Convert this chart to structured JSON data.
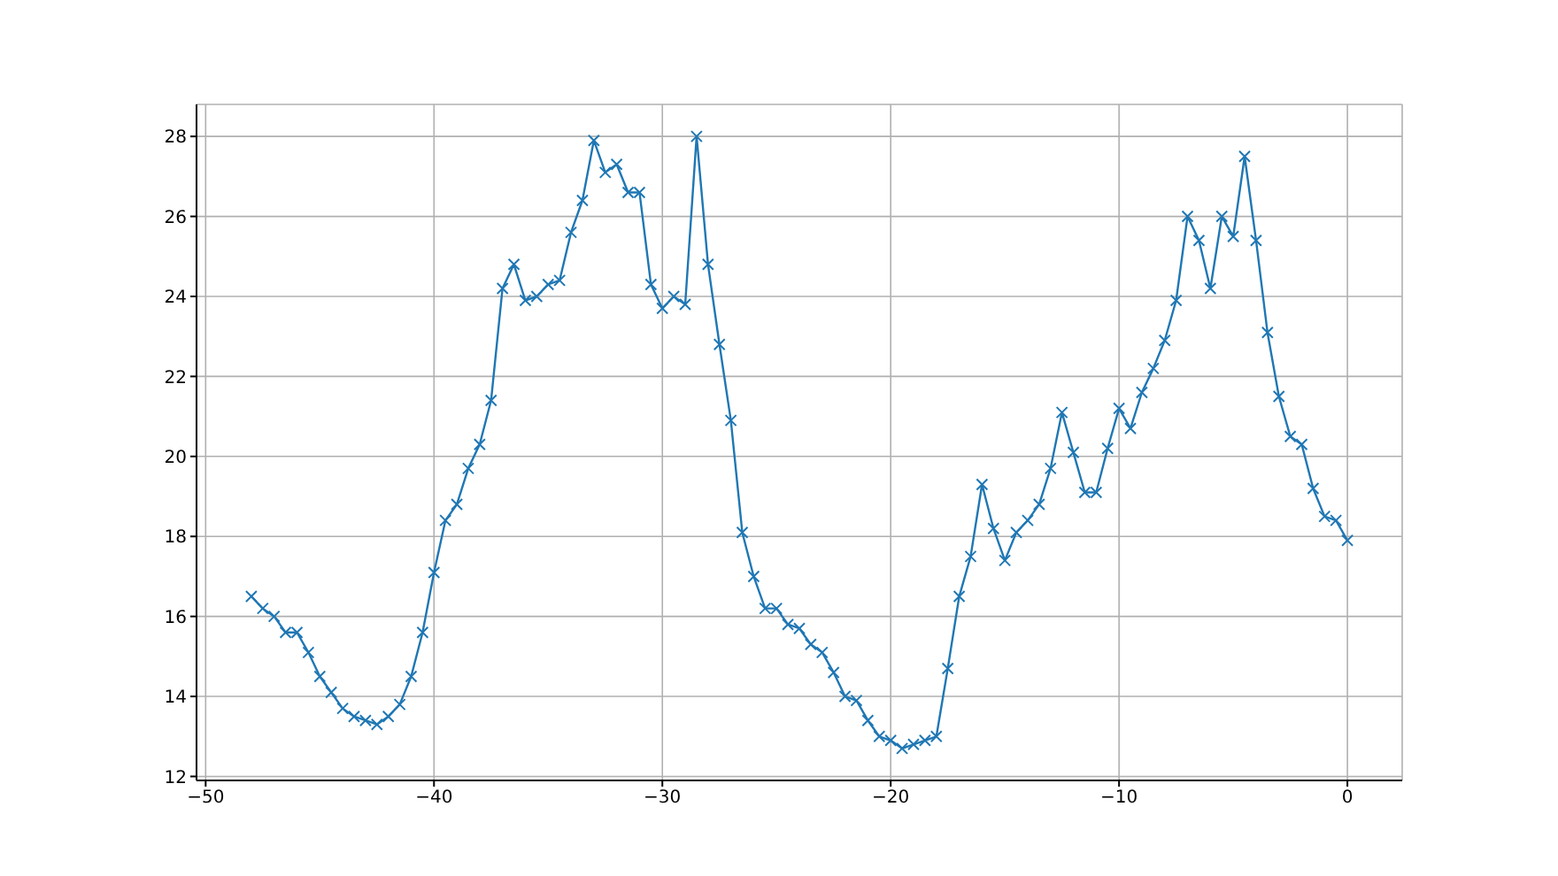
{
  "chart_data": {
    "type": "line",
    "x": [
      -48,
      -47.5,
      -47,
      -46.5,
      -46,
      -45.5,
      -45,
      -44.5,
      -44,
      -43.5,
      -43,
      -42.5,
      -42,
      -41.5,
      -41,
      -40.5,
      -40,
      -39.5,
      -39,
      -38.5,
      -38,
      -37.5,
      -37,
      -36.5,
      -36,
      -35.5,
      -35,
      -34.5,
      -34,
      -33.5,
      -33,
      -32.5,
      -32,
      -31.5,
      -31,
      -30.5,
      -30,
      -29.5,
      -29,
      -28.5,
      -28,
      -27.5,
      -27,
      -26.5,
      -26,
      -25.5,
      -25,
      -24.5,
      -24,
      -23.5,
      -23,
      -22.5,
      -22,
      -21.5,
      -21,
      -20.5,
      -20,
      -19.5,
      -19,
      -18.5,
      -18,
      -17.5,
      -17,
      -16.5,
      -16,
      -15.5,
      -15,
      -14.5,
      -14,
      -13.5,
      -13,
      -12.5,
      -12,
      -11.5,
      -11,
      -10.5,
      -10,
      -9.5,
      -9,
      -8.5,
      -8,
      -7.5,
      -7,
      -6.5,
      -6,
      -5.5,
      -5,
      -4.5,
      -4,
      -3.5,
      -3,
      -2.5,
      -2,
      -1.5,
      -1,
      -0.5,
      0
    ],
    "series": [
      {
        "color": "#1f77b4",
        "values": [
          16.5,
          16.2,
          16.0,
          15.6,
          15.6,
          15.1,
          14.5,
          14.1,
          13.7,
          13.5,
          13.4,
          13.3,
          13.5,
          13.8,
          14.5,
          15.6,
          17.1,
          18.4,
          18.8,
          19.7,
          20.3,
          21.4,
          24.2,
          24.8,
          23.9,
          24.0,
          24.3,
          24.4,
          25.6,
          26.4,
          27.9,
          27.1,
          27.3,
          26.6,
          26.6,
          24.3,
          23.7,
          24.0,
          23.8,
          28.0,
          24.8,
          22.8,
          20.9,
          18.1,
          17.0,
          16.2,
          16.2,
          15.8,
          15.7,
          15.3,
          15.1,
          14.6,
          14.0,
          13.9,
          13.4,
          13.0,
          12.9,
          12.7,
          12.8,
          12.9,
          13.0,
          14.7,
          16.5,
          17.5,
          19.3,
          18.2,
          17.4,
          18.1,
          18.4,
          18.8,
          19.7,
          21.1,
          20.1,
          19.1,
          19.1,
          20.2,
          21.2,
          20.7,
          21.6,
          22.2,
          22.9,
          23.9,
          26.0,
          25.4,
          24.2,
          26.0,
          25.5,
          27.5,
          25.4,
          23.1,
          21.5,
          20.5,
          20.3,
          19.2,
          18.5,
          18.4,
          17.9
        ]
      }
    ],
    "xlim": [
      -50.4,
      2.4
    ],
    "xticks": [
      -50,
      -40,
      -30,
      -20,
      -10,
      0
    ],
    "ylim": [
      11.9,
      28.8
    ],
    "yticks": [
      12,
      14,
      16,
      18,
      20,
      22,
      24,
      26,
      28
    ],
    "grid": true,
    "marker": "cross",
    "line_style": "solid"
  }
}
